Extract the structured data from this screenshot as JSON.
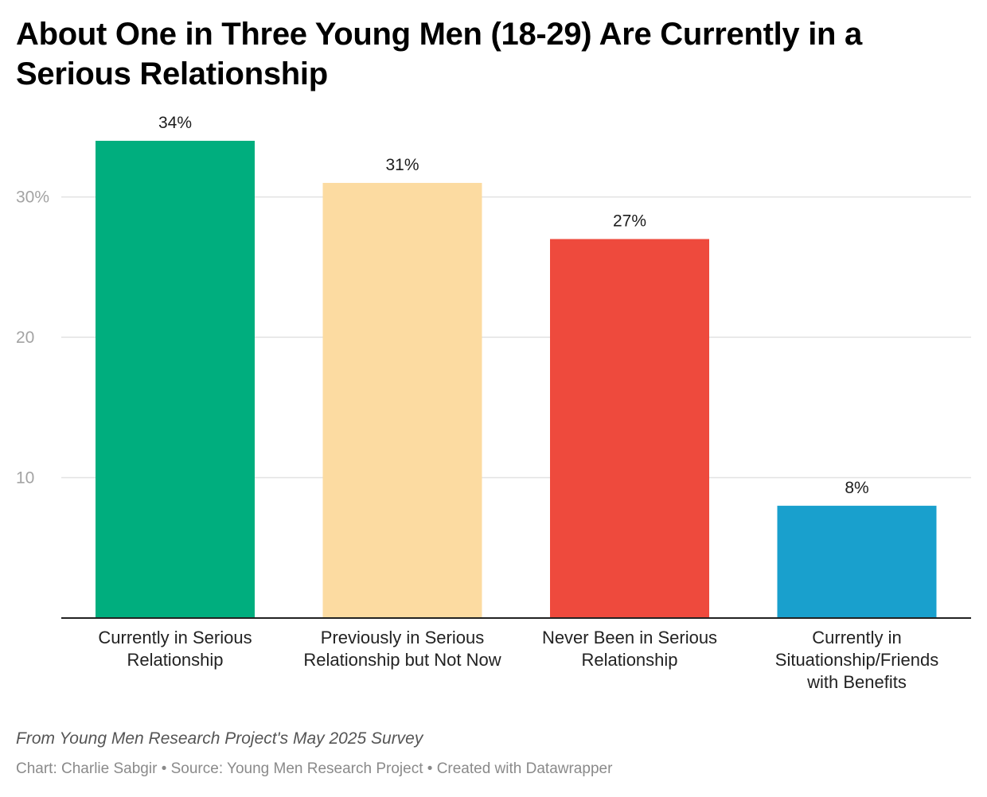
{
  "title": "About One in Three Young Men (18-29) Are Currently in a Serious Relationship",
  "notes": "From Young Men Research Project's May 2025 Survey",
  "footer": "Chart: Charlie Sabgir • Source: Young Men Research Project • Created with Datawrapper",
  "chart_data": {
    "type": "bar",
    "title": "About One in Three Young Men (18-29) Are Currently in a Serious Relationship",
    "categories": [
      "Currently in Serious Relationship",
      "Previously in Serious Relationship but Not Now",
      "Never Been in Serious Relationship",
      "Currently in Situationship/Friends with Benefits"
    ],
    "values": [
      34,
      31,
      27,
      8
    ],
    "value_labels": [
      "34%",
      "31%",
      "27%",
      "8%"
    ],
    "colors": [
      "#00ae7e",
      "#fcdba1",
      "#ee4a3d",
      "#19a0cd"
    ],
    "yticks": [
      10,
      20,
      30
    ],
    "ytick_labels": [
      "10",
      "20",
      "30%"
    ],
    "ylim": [
      0,
      34
    ],
    "grid": true,
    "xlabel": "",
    "ylabel": ""
  }
}
